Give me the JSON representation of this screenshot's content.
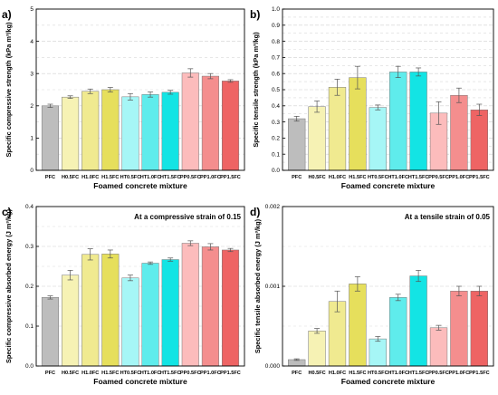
{
  "categories": [
    "PFC",
    "H0.5FC",
    "H1.0FC",
    "H1.5FC",
    "HT0.5FC",
    "HT1.0FC",
    "HT1.5FC",
    "PP0.5FC",
    "PP1.0FC",
    "PP1.5FC"
  ],
  "colors": [
    "#bdbdbd",
    "#f6f2b4",
    "#f0ea90",
    "#e6df5c",
    "#a6f6f6",
    "#5fecec",
    "#13e4e4",
    "#fcbcbc",
    "#f48e8e",
    "#ee6464"
  ],
  "chart_data": [
    {
      "type": "bar",
      "panel_label": "a)",
      "title": "",
      "xlabel": "Foamed concrete mixture",
      "ylabel": "Specific compressive strength (kPa m³/kg)",
      "annotation": "",
      "ylim": [
        0,
        5
      ],
      "yticks": [
        "0",
        "1",
        "2",
        "3",
        "4",
        "5"
      ],
      "values": [
        2.0,
        2.27,
        2.45,
        2.5,
        2.28,
        2.35,
        2.42,
        3.02,
        2.92,
        2.77
      ],
      "errors": [
        0.05,
        0.04,
        0.07,
        0.07,
        0.1,
        0.08,
        0.06,
        0.13,
        0.08,
        0.04
      ]
    },
    {
      "type": "bar",
      "panel_label": "b)",
      "title": "",
      "xlabel": "Foamed concrete mixture",
      "ylabel": "Specific tensile strength (kPa m³/kg)",
      "annotation": "",
      "ylim": [
        0,
        1.0
      ],
      "yticks": [
        "0.0",
        "0.1",
        "0.2",
        "0.3",
        "0.4",
        "0.5",
        "0.6",
        "0.7",
        "0.8",
        "0.9",
        "1.0"
      ],
      "values": [
        0.32,
        0.395,
        0.515,
        0.575,
        0.39,
        0.61,
        0.61,
        0.355,
        0.465,
        0.375
      ],
      "errors": [
        0.015,
        0.035,
        0.05,
        0.07,
        0.015,
        0.035,
        0.025,
        0.07,
        0.045,
        0.035
      ]
    },
    {
      "type": "bar",
      "panel_label": "c)",
      "title": "",
      "xlabel": "Foamed concrete mixture",
      "ylabel": "Specific compressive absorbed energy (J m³/kg)",
      "annotation": "At a compressive strain of 0.15",
      "ylim": [
        0,
        0.4
      ],
      "yticks": [
        "0.0",
        "0.1",
        "0.2",
        "0.3",
        "0.4"
      ],
      "values": [
        0.172,
        0.228,
        0.28,
        0.281,
        0.221,
        0.258,
        0.267,
        0.308,
        0.299,
        0.291
      ],
      "errors": [
        0.004,
        0.012,
        0.014,
        0.01,
        0.007,
        0.003,
        0.004,
        0.006,
        0.008,
        0.004
      ]
    },
    {
      "type": "bar",
      "panel_label": "d)",
      "title": "",
      "xlabel": "Foamed concrete mixture",
      "ylabel": "Specific tensile absorbed energy (J m³/kg)",
      "annotation": "At a tensile strain of 0.05",
      "ylim": [
        0,
        0.002
      ],
      "yticks": [
        "0.000",
        "0.001",
        "0.002"
      ],
      "values": [
        8e-05,
        0.00044,
        0.00081,
        0.00103,
        0.00034,
        0.00086,
        0.00113,
        0.00048,
        0.00094,
        0.00094
      ],
      "errors": [
        1e-05,
        3e-05,
        0.00013,
        9e-05,
        3e-05,
        4e-05,
        7e-05,
        3e-05,
        6e-05,
        6e-05
      ]
    }
  ]
}
